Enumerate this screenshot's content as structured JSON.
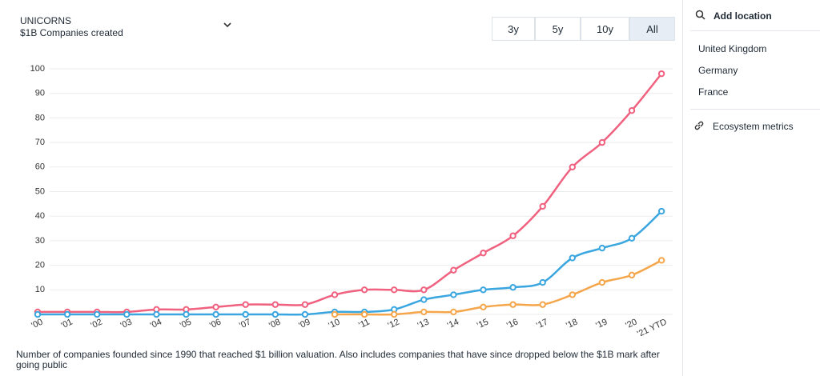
{
  "header": {
    "title": "UNICORNS",
    "subtitle": "$1B Companies created"
  },
  "range_buttons": {
    "labels": [
      "3y",
      "5y",
      "10y",
      "All"
    ],
    "active_index": 3
  },
  "sidebar": {
    "add_location": "Add location",
    "metrics": "Ecosystem metrics"
  },
  "footnote": "Number of companies founded since 1990 that reached $1 billion valuation. Also includes companies that have since dropped below the $1B mark after going public",
  "chart_data": {
    "type": "line",
    "categories": [
      "'00",
      "'01",
      "'02",
      "'03",
      "'04",
      "'05",
      "'06",
      "'07",
      "'08",
      "'09",
      "'10",
      "'11",
      "'12",
      "'13",
      "'14",
      "'15",
      "'16",
      "'17",
      "'18",
      "'19",
      "'20",
      "'21 YTD"
    ],
    "series": [
      {
        "name": "United Kingdom",
        "color": "#f0607f",
        "values": [
          1,
          1,
          1,
          1,
          2,
          2,
          3,
          4,
          4,
          4,
          8,
          10,
          10,
          10,
          18,
          25,
          32,
          44,
          60,
          70,
          83,
          98
        ]
      },
      {
        "name": "Germany",
        "color": "#3aa6e0",
        "values": [
          0,
          0,
          0,
          0,
          0,
          0,
          0,
          0,
          0,
          0,
          1,
          1,
          2,
          6,
          8,
          10,
          11,
          13,
          23,
          27,
          31,
          42
        ]
      },
      {
        "name": "France",
        "color": "#f5a54a",
        "values": [
          null,
          null,
          null,
          null,
          null,
          null,
          null,
          null,
          null,
          null,
          0,
          0,
          0,
          1,
          1,
          3,
          4,
          4,
          8,
          13,
          16,
          22
        ]
      }
    ],
    "ylim": [
      0,
      100
    ],
    "yticks": [
      {
        "value": 0,
        "label": "-"
      },
      10,
      20,
      30,
      40,
      50,
      60,
      70,
      80,
      90,
      100
    ],
    "grid": true
  }
}
